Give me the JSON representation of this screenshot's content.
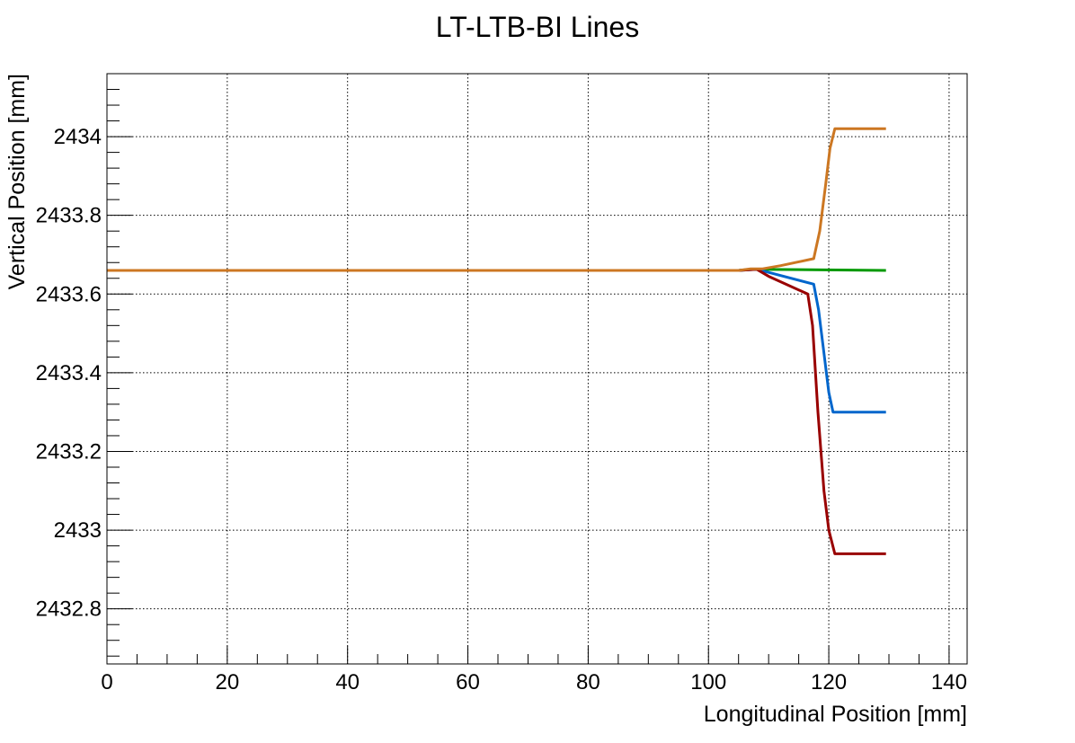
{
  "chart_data": {
    "type": "line",
    "title": "LT-LTB-BI Lines",
    "xlabel": "Longitudinal Position [mm]",
    "ylabel": "Vertical Position [mm]",
    "xlim": [
      0,
      143
    ],
    "ylim": [
      2432.66,
      2434.16
    ],
    "x_ticks": [
      0,
      20,
      40,
      60,
      80,
      100,
      120,
      140
    ],
    "x_tick_labels": [
      "0",
      "20",
      "40",
      "60",
      "80",
      "100",
      "120",
      "140"
    ],
    "y_ticks": [
      2432.8,
      2433.0,
      2433.2,
      2433.4,
      2433.6,
      2433.8,
      2434.0
    ],
    "y_tick_labels": [
      "2432.8",
      "2433",
      "2433.2",
      "2433.4",
      "2433.6",
      "2433.8",
      "2434"
    ],
    "grid": true,
    "legend": "none",
    "series": [
      {
        "color": "#009900",
        "points": [
          [
            0,
            2433.66
          ],
          [
            105,
            2433.66
          ],
          [
            107,
            2433.663
          ],
          [
            129.5,
            2433.66
          ]
        ]
      },
      {
        "color": "#0066cc",
        "points": [
          [
            0,
            2433.66
          ],
          [
            105,
            2433.66
          ],
          [
            108,
            2433.663
          ],
          [
            110,
            2433.655
          ],
          [
            117.5,
            2433.625
          ],
          [
            118.3,
            2433.56
          ],
          [
            119.2,
            2433.45
          ],
          [
            120,
            2433.35
          ],
          [
            120.7,
            2433.3
          ],
          [
            129.5,
            2433.3
          ]
        ]
      },
      {
        "color": "#990000",
        "points": [
          [
            0,
            2433.66
          ],
          [
            105,
            2433.66
          ],
          [
            108,
            2433.663
          ],
          [
            110,
            2433.645
          ],
          [
            116.5,
            2433.6
          ],
          [
            117.3,
            2433.52
          ],
          [
            118.2,
            2433.3
          ],
          [
            119.2,
            2433.1
          ],
          [
            120,
            2433.0
          ],
          [
            121,
            2432.94
          ],
          [
            129.5,
            2432.94
          ]
        ]
      },
      {
        "color": "#cc7722",
        "points": [
          [
            0,
            2433.66
          ],
          [
            105,
            2433.66
          ],
          [
            107,
            2433.664
          ],
          [
            109,
            2433.664
          ],
          [
            112,
            2433.672
          ],
          [
            117.5,
            2433.69
          ],
          [
            118.5,
            2433.76
          ],
          [
            119.5,
            2433.88
          ],
          [
            120.2,
            2433.97
          ],
          [
            121,
            2434.02
          ],
          [
            129.5,
            2434.02
          ]
        ]
      }
    ]
  }
}
